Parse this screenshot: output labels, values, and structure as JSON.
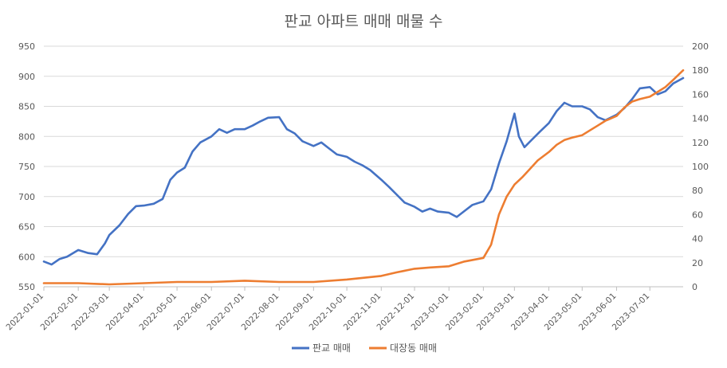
{
  "chart_data": {
    "type": "line",
    "title": "판교 아파트 매매 매물 수",
    "x_start": "2022-01-01",
    "x_end": "2023-07-31",
    "x_ticks": [
      "2022-01-01",
      "2022-02-01",
      "2022-03-01",
      "2022-04-01",
      "2022-05-01",
      "2022-06-01",
      "2022-07-01",
      "2022-08-01",
      "2022-09-01",
      "2022-10-01",
      "2022-11-01",
      "2022-12-01",
      "2023-01-01",
      "2023-02-01",
      "2023-03-01",
      "2023-04-01",
      "2023-05-01",
      "2023-06-01",
      "2023-07-01"
    ],
    "y_left": {
      "min": 550,
      "max": 950,
      "step": 50,
      "ticks": [
        "550",
        "600",
        "650",
        "700",
        "750",
        "800",
        "850",
        "900",
        "950"
      ]
    },
    "y_right": {
      "min": 0,
      "max": 200,
      "step": 20,
      "ticks": [
        "0",
        "20",
        "40",
        "60",
        "80",
        "100",
        "120",
        "140",
        "160",
        "180",
        "200"
      ]
    },
    "grid": true,
    "legend_position": "bottom",
    "series": [
      {
        "name": "판교 매매",
        "axis": "left",
        "color": "#4472C4",
        "points": [
          [
            "2022-01-01",
            592
          ],
          [
            "2022-01-08",
            587
          ],
          [
            "2022-01-15",
            596
          ],
          [
            "2022-01-22",
            600
          ],
          [
            "2022-02-01",
            611
          ],
          [
            "2022-02-10",
            606
          ],
          [
            "2022-02-18",
            604
          ],
          [
            "2022-02-25",
            622
          ],
          [
            "2022-03-01",
            636
          ],
          [
            "2022-03-10",
            652
          ],
          [
            "2022-03-18",
            671
          ],
          [
            "2022-03-25",
            684
          ],
          [
            "2022-04-01",
            685
          ],
          [
            "2022-04-10",
            688
          ],
          [
            "2022-04-18",
            696
          ],
          [
            "2022-04-25",
            728
          ],
          [
            "2022-05-01",
            740
          ],
          [
            "2022-05-08",
            748
          ],
          [
            "2022-05-15",
            775
          ],
          [
            "2022-05-22",
            790
          ],
          [
            "2022-06-01",
            800
          ],
          [
            "2022-06-08",
            812
          ],
          [
            "2022-06-15",
            806
          ],
          [
            "2022-06-22",
            812
          ],
          [
            "2022-07-01",
            812
          ],
          [
            "2022-07-08",
            818
          ],
          [
            "2022-07-15",
            825
          ],
          [
            "2022-07-22",
            831
          ],
          [
            "2022-08-01",
            832
          ],
          [
            "2022-08-08",
            812
          ],
          [
            "2022-08-15",
            805
          ],
          [
            "2022-08-22",
            792
          ],
          [
            "2022-09-01",
            784
          ],
          [
            "2022-09-08",
            790
          ],
          [
            "2022-09-15",
            780
          ],
          [
            "2022-09-22",
            770
          ],
          [
            "2022-10-01",
            766
          ],
          [
            "2022-10-08",
            758
          ],
          [
            "2022-10-15",
            752
          ],
          [
            "2022-10-22",
            744
          ],
          [
            "2022-11-01",
            728
          ],
          [
            "2022-11-08",
            716
          ],
          [
            "2022-11-15",
            703
          ],
          [
            "2022-11-22",
            690
          ],
          [
            "2022-12-01",
            683
          ],
          [
            "2022-12-08",
            675
          ],
          [
            "2022-12-15",
            680
          ],
          [
            "2022-12-22",
            675
          ],
          [
            "2023-01-01",
            673
          ],
          [
            "2023-01-08",
            666
          ],
          [
            "2023-01-15",
            676
          ],
          [
            "2023-01-22",
            686
          ],
          [
            "2023-02-01",
            692
          ],
          [
            "2023-02-08",
            712
          ],
          [
            "2023-02-15",
            755
          ],
          [
            "2023-02-22",
            792
          ],
          [
            "2023-03-01",
            838
          ],
          [
            "2023-03-05",
            800
          ],
          [
            "2023-03-10",
            782
          ],
          [
            "2023-03-17",
            795
          ],
          [
            "2023-03-24",
            808
          ],
          [
            "2023-04-01",
            822
          ],
          [
            "2023-04-08",
            842
          ],
          [
            "2023-04-15",
            856
          ],
          [
            "2023-04-22",
            850
          ],
          [
            "2023-05-01",
            850
          ],
          [
            "2023-05-08",
            845
          ],
          [
            "2023-05-15",
            832
          ],
          [
            "2023-05-22",
            827
          ],
          [
            "2023-06-01",
            836
          ],
          [
            "2023-06-08",
            847
          ],
          [
            "2023-06-15",
            862
          ],
          [
            "2023-06-22",
            880
          ],
          [
            "2023-07-01",
            882
          ],
          [
            "2023-07-08",
            870
          ],
          [
            "2023-07-15",
            875
          ],
          [
            "2023-07-22",
            888
          ],
          [
            "2023-07-31",
            897
          ]
        ]
      },
      {
        "name": "대장동 매매",
        "axis": "right",
        "color": "#ED7D31",
        "points": [
          [
            "2022-01-01",
            3
          ],
          [
            "2022-02-01",
            3
          ],
          [
            "2022-03-01",
            2
          ],
          [
            "2022-04-01",
            3
          ],
          [
            "2022-05-01",
            4
          ],
          [
            "2022-06-01",
            4
          ],
          [
            "2022-07-01",
            5
          ],
          [
            "2022-08-01",
            4
          ],
          [
            "2022-09-01",
            4
          ],
          [
            "2022-10-01",
            6
          ],
          [
            "2022-11-01",
            9
          ],
          [
            "2022-11-15",
            12
          ],
          [
            "2022-12-01",
            15
          ],
          [
            "2022-12-15",
            16
          ],
          [
            "2023-01-01",
            17
          ],
          [
            "2023-01-15",
            21
          ],
          [
            "2023-02-01",
            24
          ],
          [
            "2023-02-08",
            35
          ],
          [
            "2023-02-15",
            60
          ],
          [
            "2023-02-22",
            75
          ],
          [
            "2023-03-01",
            85
          ],
          [
            "2023-03-08",
            91
          ],
          [
            "2023-03-15",
            98
          ],
          [
            "2023-03-22",
            105
          ],
          [
            "2023-04-01",
            112
          ],
          [
            "2023-04-08",
            118
          ],
          [
            "2023-04-15",
            122
          ],
          [
            "2023-04-22",
            124
          ],
          [
            "2023-05-01",
            126
          ],
          [
            "2023-05-08",
            130
          ],
          [
            "2023-05-15",
            134
          ],
          [
            "2023-05-22",
            138
          ],
          [
            "2023-06-01",
            142
          ],
          [
            "2023-06-08",
            149
          ],
          [
            "2023-06-15",
            154
          ],
          [
            "2023-06-22",
            156
          ],
          [
            "2023-07-01",
            158
          ],
          [
            "2023-07-08",
            162
          ],
          [
            "2023-07-15",
            166
          ],
          [
            "2023-07-22",
            172
          ],
          [
            "2023-07-31",
            180
          ]
        ]
      }
    ]
  }
}
